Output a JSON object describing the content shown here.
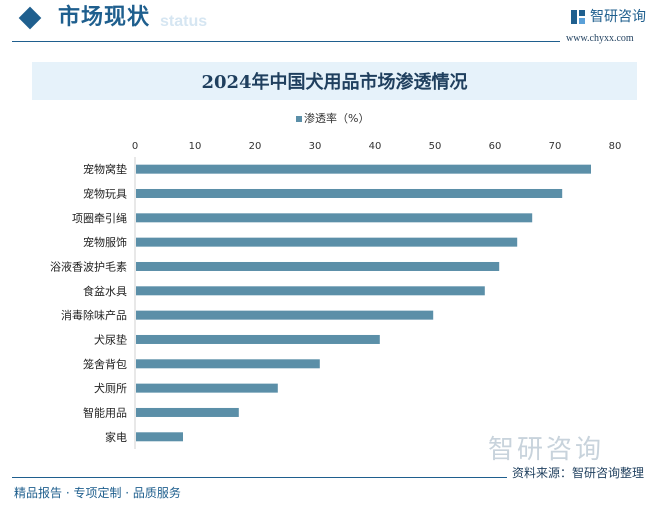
{
  "header": {
    "title": "市场现状",
    "subtitle": "status",
    "brand": "智研咨询",
    "url": "www.chyxx.com"
  },
  "chart_data": {
    "type": "bar",
    "orientation": "horizontal",
    "title": "2024年中国犬用品市场渗透情况",
    "categories": [
      "宠物窝垫",
      "宠物玩具",
      "项圈牵引绳",
      "宠物服饰",
      "浴液香波护毛素",
      "食盆水具",
      "消毒除味产品",
      "犬尿垫",
      "笼舍背包",
      "犬厕所",
      "智能用品",
      "家电"
    ],
    "series": [
      {
        "name": "渗透率（%）",
        "values": [
          76.0,
          71.2,
          66.2,
          63.7,
          60.7,
          58.3,
          49.7,
          40.8,
          30.8,
          23.8,
          17.3,
          8.0
        ]
      }
    ],
    "xlim": [
      0,
      80
    ],
    "ticks": [
      "0",
      "10",
      "20",
      "30",
      "40",
      "50",
      "60",
      "70",
      "80"
    ],
    "legend": "top",
    "grid": false,
    "bar_color": "#5b8fa8"
  },
  "watermark": "智研咨询",
  "source": "资料来源：智研咨询整理",
  "footer": "精品报告 · 专项定制 · 品质服务"
}
